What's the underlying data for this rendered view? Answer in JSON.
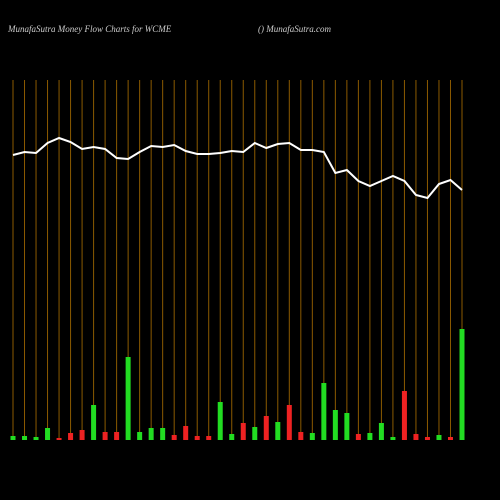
{
  "chart_data": {
    "type": "bar-line",
    "title": "MunafaSutra  Money Flow  Charts for WCME",
    "subtitle": "() MunafaSutra.com",
    "categories": [
      null,
      null,
      null,
      null,
      null,
      null,
      null,
      null,
      null,
      null,
      null,
      null,
      null,
      null,
      null,
      null,
      null,
      null,
      null,
      null,
      null,
      null,
      null,
      null,
      null,
      null,
      null,
      null,
      null,
      null,
      null,
      null,
      null,
      null,
      null,
      null,
      null,
      null,
      null,
      null
    ],
    "ylim": [
      0,
      400
    ],
    "grid_color": "#8b5a00",
    "bars": {
      "values": [
        4,
        4,
        3,
        12,
        2,
        7,
        10,
        35,
        8,
        8,
        83,
        8,
        12,
        12,
        5,
        14,
        4,
        4,
        38,
        6,
        17,
        13,
        24,
        18,
        35,
        8,
        7,
        57,
        30,
        27,
        6,
        7,
        17,
        3,
        49,
        6,
        3,
        5,
        3,
        111
      ],
      "colors": [
        "#22dd22",
        "#22dd22",
        "#22dd22",
        "#22dd22",
        "#ee2222",
        "#ee2222",
        "#ee2222",
        "#22dd22",
        "#ee2222",
        "#ee2222",
        "#22dd22",
        "#22dd22",
        "#22dd22",
        "#22dd22",
        "#ee2222",
        "#ee2222",
        "#ee2222",
        "#ee2222",
        "#22dd22",
        "#22dd22",
        "#ee2222",
        "#22dd22",
        "#ee2222",
        "#22dd22",
        "#ee2222",
        "#ee2222",
        "#22dd22",
        "#22dd22",
        "#22dd22",
        "#22dd22",
        "#ee2222",
        "#22dd22",
        "#22dd22",
        "#22dd22",
        "#ee2222",
        "#ee2222",
        "#ee2222",
        "#22dd22",
        "#ee2222",
        "#22dd22"
      ]
    },
    "line": {
      "color": "#ffffff",
      "values": [
        285,
        288,
        287,
        297,
        302,
        298,
        291,
        293,
        291,
        282,
        281,
        288,
        294,
        293,
        295,
        289,
        286,
        286,
        287,
        289,
        288,
        297,
        292,
        296,
        297,
        290,
        290,
        288,
        267,
        270,
        259,
        254,
        259,
        264,
        259,
        245,
        242,
        256,
        260,
        250
      ]
    }
  }
}
